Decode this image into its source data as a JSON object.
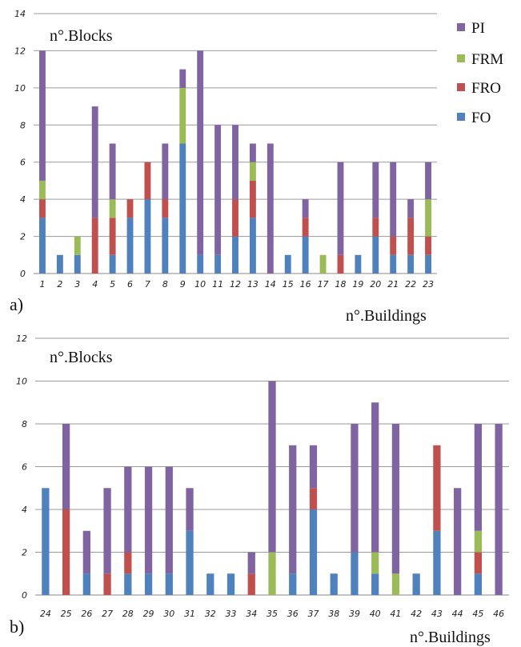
{
  "legend": [
    "PI",
    "FRM",
    "FRO",
    "FO"
  ],
  "colors": {
    "PI": "#8064a2",
    "FRM": "#9bbb59",
    "FRO": "#c0504d",
    "FO": "#4f81bd"
  },
  "chart_data": [
    {
      "type": "bar",
      "stacked": true,
      "panel_label": "a)",
      "title": "n°.Blocks",
      "xlabel": "n°.Buildings",
      "ylim": [
        0,
        14
      ],
      "yticks": [
        0,
        2,
        4,
        6,
        8,
        10,
        12,
        14
      ],
      "grid": true,
      "legend_position": "right",
      "categories": [
        "1",
        "2",
        "3",
        "4",
        "5",
        "6",
        "7",
        "8",
        "9",
        "10",
        "11",
        "12",
        "13",
        "14",
        "15",
        "16",
        "17",
        "18",
        "19",
        "20",
        "21",
        "22",
        "23"
      ],
      "series": [
        {
          "name": "FO",
          "values": [
            3,
            1,
            1,
            0,
            1,
            3,
            4,
            3,
            7,
            1,
            1,
            2,
            3,
            0,
            1,
            2,
            0,
            0,
            1,
            2,
            1,
            1,
            1
          ]
        },
        {
          "name": "FRO",
          "values": [
            1,
            0,
            0,
            3,
            2,
            1,
            2,
            1,
            0,
            0,
            0,
            2,
            2,
            0,
            0,
            1,
            0,
            1,
            0,
            1,
            1,
            2,
            1
          ]
        },
        {
          "name": "FRM",
          "values": [
            1,
            0,
            1,
            0,
            1,
            0,
            0,
            0,
            3,
            0,
            0,
            0,
            1,
            0,
            0,
            0,
            1,
            0,
            0,
            0,
            0,
            0,
            2
          ]
        },
        {
          "name": "PI",
          "values": [
            7,
            0,
            0,
            6,
            3,
            0,
            0,
            3,
            1,
            11,
            7,
            4,
            1,
            7,
            0,
            1,
            0,
            5,
            0,
            3,
            4,
            1,
            2
          ]
        }
      ]
    },
    {
      "type": "bar",
      "stacked": true,
      "panel_label": "b)",
      "title": "n°.Blocks",
      "xlabel": "n°.Buildings",
      "ylim": [
        0,
        12
      ],
      "yticks": [
        0,
        2,
        4,
        6,
        8,
        10,
        12
      ],
      "grid": true,
      "categories": [
        "24",
        "25",
        "26",
        "27",
        "28",
        "29",
        "30",
        "31",
        "32",
        "33",
        "34",
        "35",
        "36",
        "37",
        "38",
        "39",
        "40",
        "41",
        "42",
        "43",
        "44",
        "45",
        "46"
      ],
      "series": [
        {
          "name": "FO",
          "values": [
            5,
            0,
            1,
            0,
            1,
            1,
            1,
            3,
            1,
            1,
            0,
            0,
            1,
            4,
            1,
            2,
            1,
            0,
            1,
            3,
            0,
            1,
            0
          ]
        },
        {
          "name": "FRO",
          "values": [
            0,
            4,
            0,
            1,
            1,
            0,
            0,
            0,
            0,
            0,
            1,
            0,
            0,
            1,
            0,
            0,
            0,
            0,
            0,
            4,
            0,
            1,
            0
          ]
        },
        {
          "name": "FRM",
          "values": [
            0,
            0,
            0,
            0,
            0,
            0,
            0,
            0,
            0,
            0,
            0,
            2,
            0,
            0,
            0,
            0,
            1,
            1,
            0,
            0,
            0,
            1,
            0
          ]
        },
        {
          "name": "PI",
          "values": [
            0,
            4,
            2,
            4,
            4,
            5,
            5,
            2,
            0,
            0,
            1,
            8,
            6,
            2,
            0,
            6,
            7,
            7,
            0,
            0,
            5,
            5,
            8
          ]
        }
      ]
    }
  ]
}
